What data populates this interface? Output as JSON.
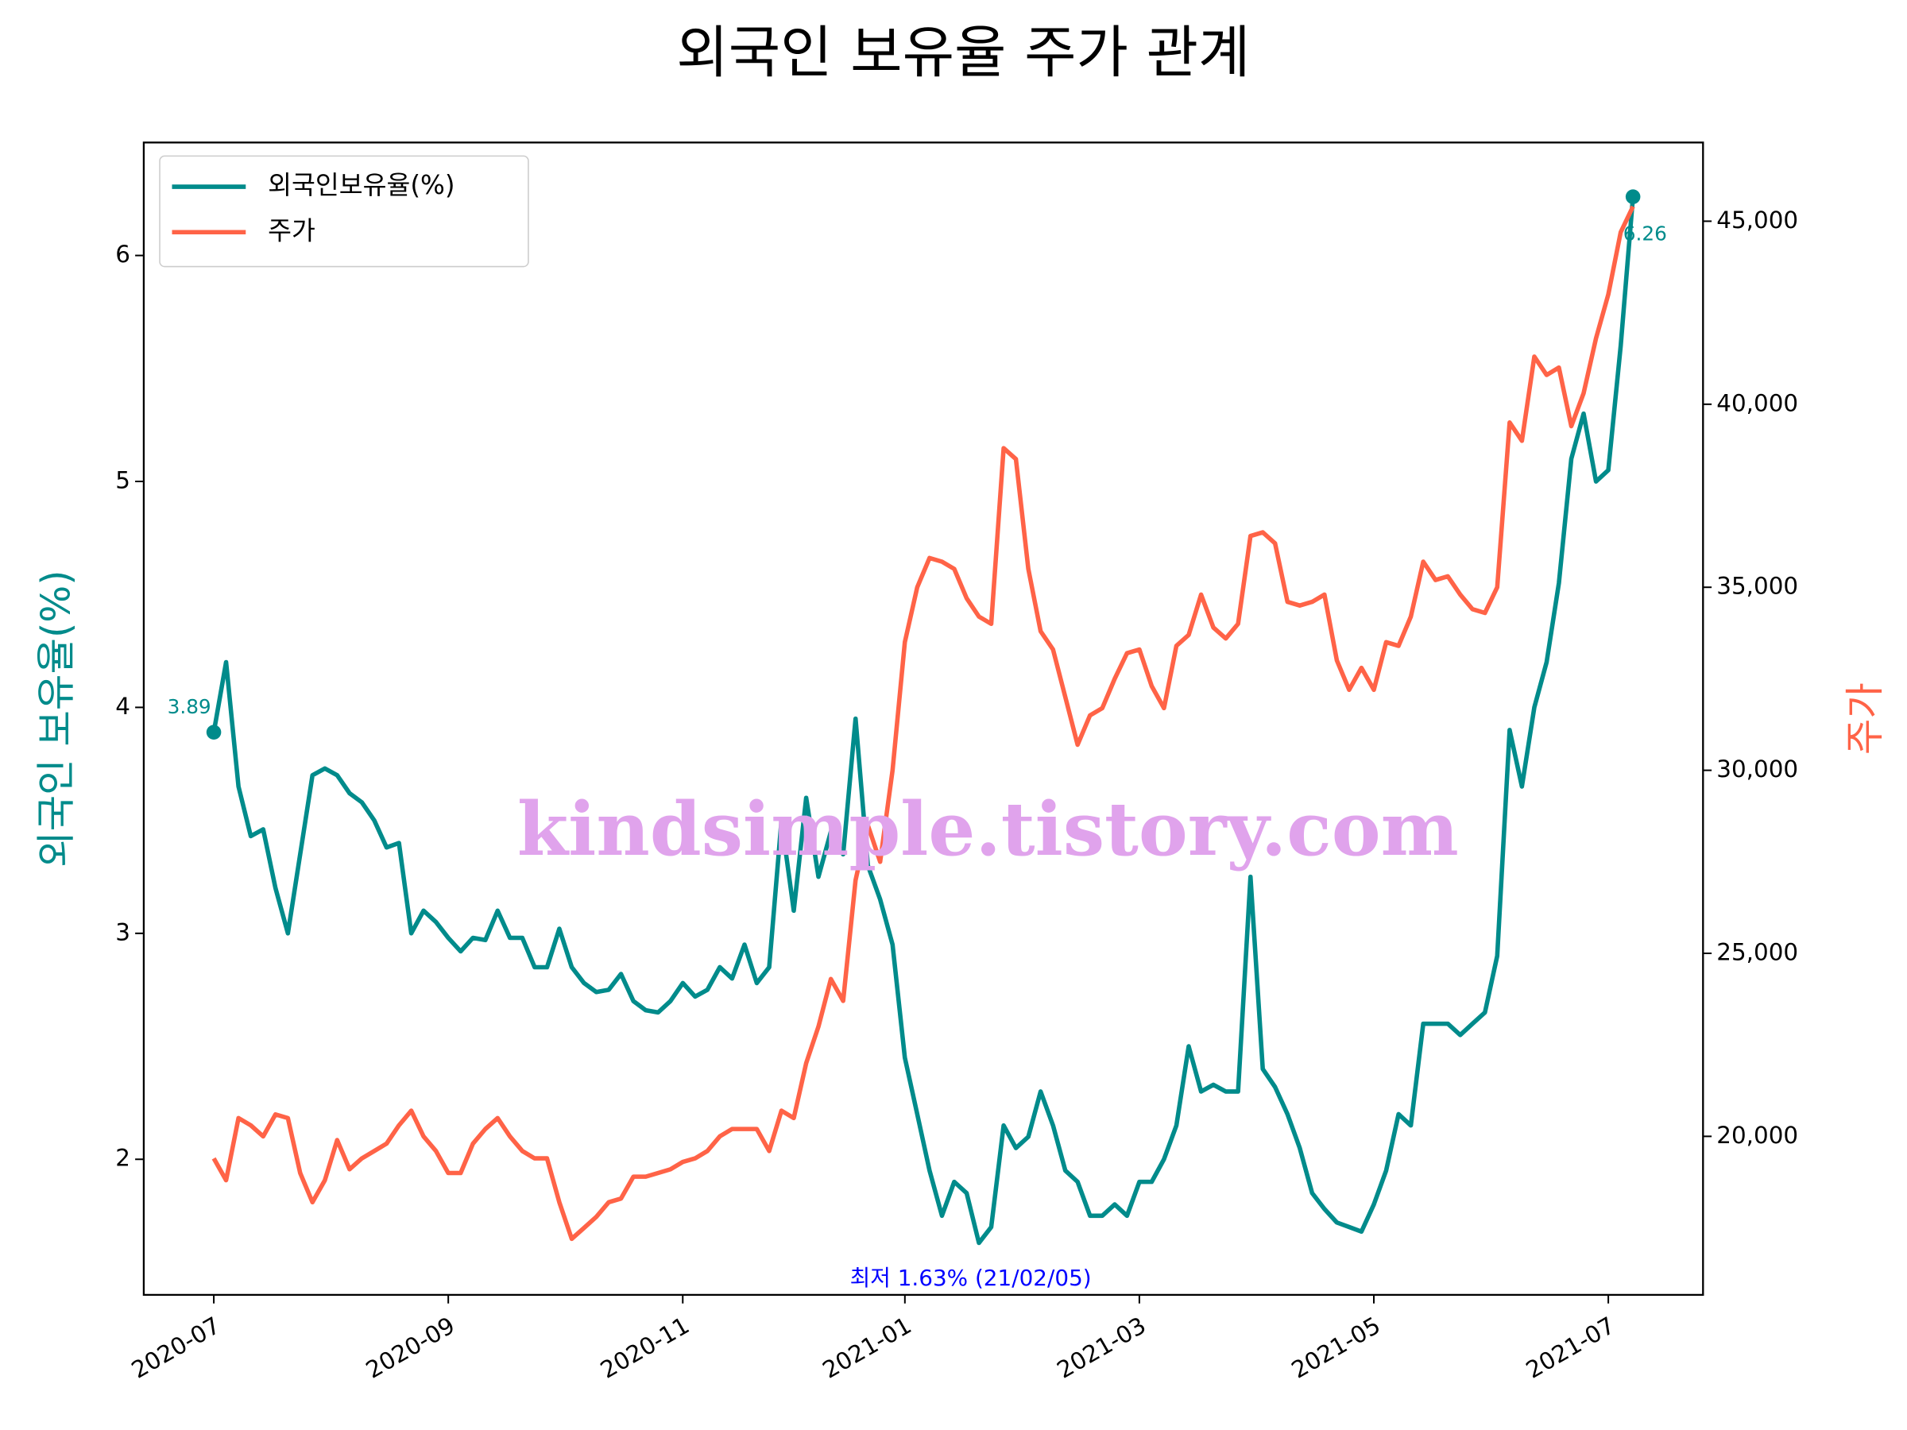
{
  "chart_data": {
    "type": "line",
    "title": "외국인 보유율 주가 관계",
    "ylabel": "외국인 보유율(%)",
    "y2label": "주가",
    "watermark": "kindsimple.tistory.com",
    "annotation": "최저 1.63% (21/02/05)",
    "legend": "upper left",
    "categories": [
      "2020-07",
      null,
      null,
      null,
      null,
      null,
      null,
      null,
      null,
      null,
      null,
      null,
      null,
      null,
      null,
      null,
      null,
      null,
      null,
      "2020-09",
      null,
      null,
      null,
      null,
      null,
      null,
      null,
      null,
      null,
      null,
      null,
      null,
      null,
      null,
      null,
      null,
      null,
      null,
      "2020-11",
      null,
      null,
      null,
      null,
      null,
      null,
      null,
      null,
      null,
      null,
      null,
      null,
      null,
      null,
      null,
      null,
      null,
      "2021-01",
      null,
      null,
      null,
      null,
      null,
      null,
      null,
      null,
      null,
      null,
      null,
      null,
      null,
      null,
      null,
      null,
      null,
      null,
      "2021-03",
      null,
      null,
      null,
      null,
      null,
      null,
      null,
      null,
      null,
      null,
      null,
      null,
      null,
      null,
      null,
      null,
      null,
      null,
      "2021-05",
      null,
      null,
      null,
      null,
      null,
      null,
      null,
      null,
      null,
      null,
      null,
      null,
      null,
      null,
      null,
      null,
      null,
      null,
      "2021-07",
      null,
      null
    ],
    "series": [
      {
        "name": "외국인보유율(%)",
        "color": "#008b8b",
        "values": [
          3.89,
          4.2,
          3.65,
          3.43,
          3.46,
          3.2,
          3.0,
          3.35,
          3.7,
          3.73,
          3.7,
          3.62,
          3.58,
          3.5,
          3.38,
          3.4,
          3.0,
          3.1,
          3.05,
          2.98,
          2.92,
          2.98,
          2.97,
          3.1,
          2.98,
          2.98,
          2.85,
          2.85,
          3.02,
          2.85,
          2.78,
          2.74,
          2.75,
          2.82,
          2.7,
          2.66,
          2.65,
          2.7,
          2.78,
          2.72,
          2.75,
          2.85,
          2.8,
          2.95,
          2.78,
          2.85,
          3.5,
          3.1,
          3.6,
          3.25,
          3.45,
          3.35,
          3.95,
          3.3,
          3.15,
          2.95,
          2.45,
          2.2,
          1.95,
          1.75,
          1.9,
          1.85,
          1.63,
          1.7,
          2.15,
          2.05,
          2.1,
          2.3,
          2.15,
          1.95,
          1.9,
          1.75,
          1.75,
          1.8,
          1.75,
          1.9,
          1.9,
          2.0,
          2.15,
          2.5,
          2.3,
          2.33,
          2.3,
          2.3,
          3.25,
          2.4,
          2.32,
          2.2,
          2.05,
          1.85,
          1.78,
          1.72,
          1.7,
          1.68,
          1.8,
          1.95,
          2.2,
          2.15,
          2.6,
          2.6,
          2.6,
          2.55,
          2.6,
          2.65,
          2.9,
          3.9,
          3.65,
          4.0,
          4.2,
          4.55,
          5.1,
          5.3,
          5.0,
          5.05,
          5.6,
          6.26
        ]
      },
      {
        "name": "주가",
        "color": "#ff6347",
        "axis": "y2",
        "values": [
          19400,
          18800,
          20500,
          20300,
          20000,
          20600,
          20500,
          19000,
          18200,
          18800,
          19900,
          19100,
          19400,
          19600,
          19800,
          20300,
          20700,
          20000,
          19600,
          19000,
          19000,
          19800,
          20200,
          20500,
          20000,
          19600,
          19400,
          19400,
          18200,
          17200,
          17500,
          17800,
          18200,
          18300,
          18900,
          18900,
          19000,
          19100,
          19300,
          19400,
          19600,
          20000,
          20200,
          20200,
          20200,
          19600,
          20700,
          20500,
          22000,
          23000,
          24300,
          23700,
          27000,
          28500,
          27500,
          30000,
          33500,
          35000,
          35800,
          35700,
          35500,
          34700,
          34200,
          34000,
          38800,
          38500,
          35500,
          33800,
          33300,
          32000,
          30700,
          31500,
          31700,
          32500,
          33200,
          33300,
          32300,
          31700,
          33400,
          33700,
          34800,
          33900,
          33600,
          34000,
          36400,
          36500,
          36200,
          34600,
          34500,
          34600,
          34800,
          33000,
          32200,
          32800,
          32200,
          33500,
          33400,
          34200,
          35700,
          35200,
          35300,
          34800,
          34400,
          34300,
          35000,
          39500,
          39000,
          41300,
          40800,
          41000,
          39400,
          40300,
          41800,
          43000,
          44700,
          45400
        ]
      }
    ],
    "ylim": [
      1.4,
      6.5
    ],
    "yticks": [
      2,
      3,
      4,
      5,
      6
    ],
    "y2lim": [
      15670,
      47150
    ],
    "y2ticks": [
      {
        "value": 20000,
        "label": "20,000"
      },
      {
        "value": 25000,
        "label": "25,000"
      },
      {
        "value": 30000,
        "label": "30,000"
      },
      {
        "value": 35000,
        "label": "35,000"
      },
      {
        "value": 40000,
        "label": "40,000"
      },
      {
        "value": 45000,
        "label": "45,000"
      }
    ]
  }
}
